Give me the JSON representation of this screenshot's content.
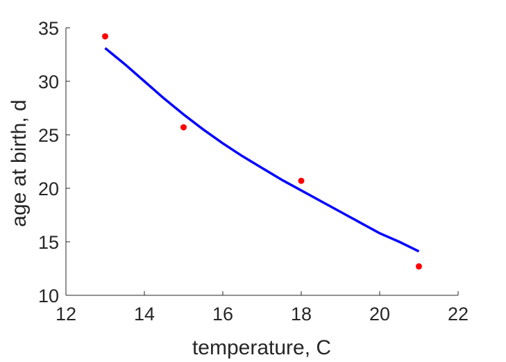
{
  "chart_data": {
    "type": "scatter",
    "title": "",
    "xlabel": "temperature, C",
    "ylabel": "age at birth, d",
    "xlim": [
      12,
      22
    ],
    "ylim": [
      10,
      35
    ],
    "xticks": [
      12,
      14,
      16,
      18,
      20,
      22
    ],
    "yticks": [
      10,
      15,
      20,
      25,
      30,
      35
    ],
    "xtick_labels": [
      "12",
      "14",
      "16",
      "18",
      "20",
      "22"
    ],
    "ytick_labels": [
      "10",
      "15",
      "20",
      "25",
      "30",
      "35"
    ],
    "grid": false,
    "legend": "none",
    "series": [
      {
        "kind": "scatter",
        "color": "#ff0000",
        "x": [
          13,
          15,
          18,
          21
        ],
        "y": [
          34.2,
          25.7,
          20.7,
          12.7
        ]
      },
      {
        "kind": "line",
        "color": "#0000ff",
        "x": [
          13,
          13.5,
          14,
          14.5,
          15,
          15.5,
          16,
          16.5,
          17,
          17.5,
          18,
          18.5,
          19,
          19.5,
          20,
          20.5,
          21
        ],
        "y": [
          33.1,
          31.6,
          30.0,
          28.4,
          26.9,
          25.5,
          24.2,
          23.0,
          21.9,
          20.8,
          19.8,
          18.8,
          17.8,
          16.8,
          15.8,
          15.0,
          14.1
        ]
      }
    ]
  }
}
